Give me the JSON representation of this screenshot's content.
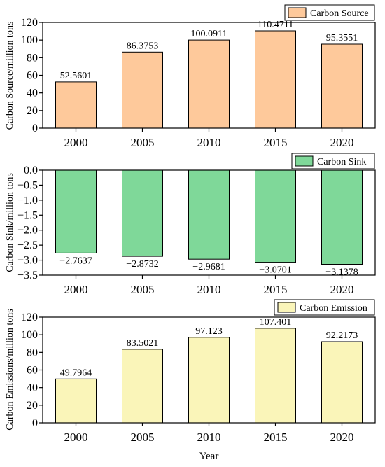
{
  "chart_data": [
    {
      "type": "bar",
      "categories": [
        "2000",
        "2005",
        "2010",
        "2015",
        "2020"
      ],
      "values": [
        52.5601,
        86.3753,
        100.0911,
        110.4711,
        95.3551
      ],
      "value_labels": [
        "52.5601",
        "86.3753",
        "100.0911",
        "110.4711",
        "95.3551"
      ],
      "ylabel": "Carbon Source/million tons",
      "xlabel": "",
      "ylim": [
        0,
        120
      ],
      "yticks": [
        0,
        20,
        40,
        60,
        80,
        100,
        120
      ],
      "ytick_labels": [
        "0",
        "20",
        "40",
        "60",
        "80",
        "100",
        "120"
      ],
      "legend": "Carbon Source",
      "legend_position": "top-right",
      "color": "#FEC99B"
    },
    {
      "type": "bar",
      "categories": [
        "2000",
        "2005",
        "2010",
        "2015",
        "2020"
      ],
      "values": [
        -2.7637,
        -2.8732,
        -2.9681,
        -3.0701,
        -3.1378
      ],
      "value_labels": [
        "−2.7637",
        "−2.8732",
        "−2.9681",
        "−3.0701",
        "−3.1378"
      ],
      "ylabel": "Carbon Sink/million tons",
      "xlabel": "",
      "ylim": [
        -3.5,
        0
      ],
      "yticks": [
        0,
        -0.5,
        -1,
        -1.5,
        -2,
        -2.5,
        -3,
        -3.5
      ],
      "ytick_labels": [
        "0.0",
        "−0.5",
        "−1.0",
        "−1.5",
        "−2.0",
        "−2.5",
        "−3.0",
        "−3.5"
      ],
      "legend": "Carbon Sink",
      "legend_position": "top-right",
      "color": "#7FD899"
    },
    {
      "type": "bar",
      "categories": [
        "2000",
        "2005",
        "2010",
        "2015",
        "2020"
      ],
      "values": [
        49.7964,
        83.5021,
        97.123,
        107.401,
        92.2173
      ],
      "value_labels": [
        "49.7964",
        "83.5021",
        "97.123",
        "107.401",
        "92.2173"
      ],
      "ylabel": "Carbon Emissions/million tons",
      "xlabel": "Year",
      "ylim": [
        0,
        120
      ],
      "yticks": [
        0,
        20,
        40,
        60,
        80,
        100,
        120
      ],
      "ytick_labels": [
        "0",
        "20",
        "40",
        "60",
        "80",
        "100",
        "120"
      ],
      "legend": "Carbon Emission",
      "legend_position": "top-right",
      "color": "#FAF5B9"
    }
  ]
}
